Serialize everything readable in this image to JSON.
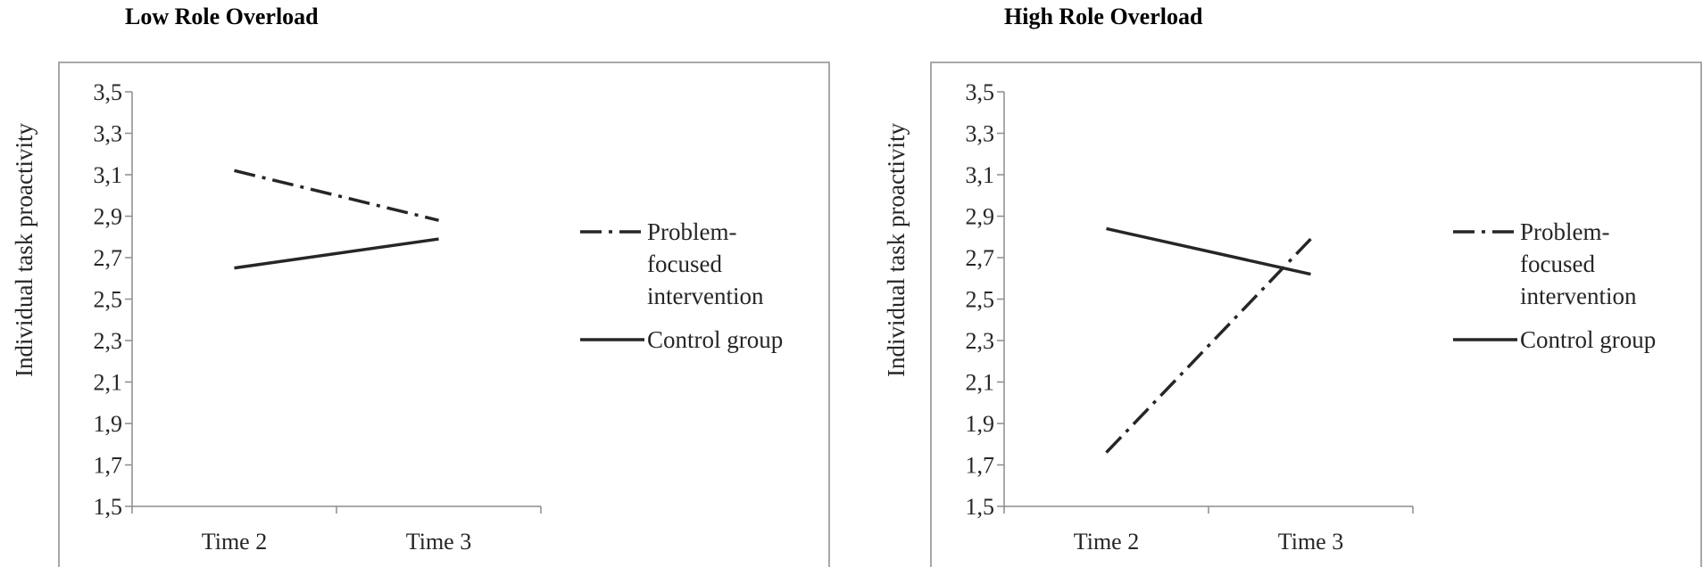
{
  "chart_data": [
    {
      "type": "line",
      "title": "Low Role Overload",
      "xlabel": "",
      "ylabel": "Individual task proactivity",
      "categories": [
        "Time 2",
        "Time 3"
      ],
      "ylim": [
        1.5,
        3.5
      ],
      "yticks": [
        "1,5",
        "1,7",
        "1,9",
        "2,1",
        "2,3",
        "2,5",
        "2,7",
        "2,9",
        "3,1",
        "3,3",
        "3,5"
      ],
      "grid": false,
      "legend_position": "right",
      "series": [
        {
          "name": "Problem-focused intervention",
          "legend_lines": [
            "Problem-",
            "focused",
            "intervention"
          ],
          "style": "dash-dot",
          "values": [
            3.12,
            2.88
          ]
        },
        {
          "name": "Control group",
          "legend_lines": [
            "Control group"
          ],
          "style": "solid",
          "values": [
            2.65,
            2.79
          ]
        }
      ]
    },
    {
      "type": "line",
      "title": "High Role Overload",
      "xlabel": "",
      "ylabel": "Individual task proactivity",
      "categories": [
        "Time 2",
        "Time 3"
      ],
      "ylim": [
        1.5,
        3.5
      ],
      "yticks": [
        "1,5",
        "1,7",
        "1,9",
        "2,1",
        "2,3",
        "2,5",
        "2,7",
        "2,9",
        "3,1",
        "3,3",
        "3,5"
      ],
      "grid": false,
      "legend_position": "right",
      "series": [
        {
          "name": "Problem-focused intervention",
          "legend_lines": [
            "Problem-",
            "focused",
            "intervention"
          ],
          "style": "dash-dot",
          "values": [
            1.76,
            2.79
          ]
        },
        {
          "name": "Control group",
          "legend_lines": [
            "Control group"
          ],
          "style": "solid",
          "values": [
            2.84,
            2.62
          ]
        }
      ]
    }
  ]
}
